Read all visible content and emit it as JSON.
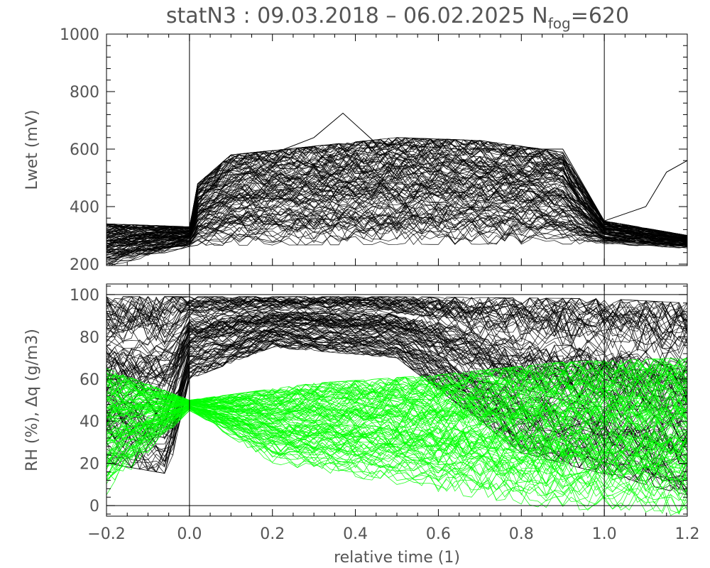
{
  "chart_data": [
    {
      "type": "line",
      "title": {
        "prefix": "statN3 : 09.03.2018 – 06.02.2025 N",
        "subscript": "fog",
        "suffix": "=620"
      },
      "ylabel": "Lwet (mV)",
      "xlabel": "",
      "xlim": [
        -0.2,
        1.2
      ],
      "ylim": [
        195,
        1000
      ],
      "y_ticks": [
        "200",
        "400",
        "600",
        "800",
        "1000"
      ],
      "y_tick_values": [
        200,
        400,
        600,
        800,
        1000
      ],
      "x_ticks_labeled": false,
      "reference_lines_x": [
        0.0,
        1.0
      ],
      "series": [
        {
          "color": "#000000",
          "style": "ensemble of fog-event curves",
          "envelope_upper": [
            [
              -0.2,
              340
            ],
            [
              0.0,
              330
            ],
            [
              0.02,
              480
            ],
            [
              0.1,
              580
            ],
            [
              0.3,
              610
            ],
            [
              0.5,
              640
            ],
            [
              0.7,
              630
            ],
            [
              0.9,
              590
            ],
            [
              1.0,
              350
            ],
            [
              1.2,
              300
            ]
          ],
          "envelope_lower": [
            [
              -0.2,
              190
            ],
            [
              0.0,
              260
            ],
            [
              0.02,
              265
            ],
            [
              0.5,
              268
            ],
            [
              1.0,
              270
            ],
            [
              1.2,
              255
            ]
          ]
        },
        {
          "color": "#000000",
          "style": "highlight curve",
          "points": [
            [
              -0.2,
              280
            ],
            [
              0.0,
              330
            ],
            [
              0.05,
              500
            ],
            [
              0.3,
              640
            ],
            [
              0.37,
              725
            ],
            [
              0.45,
              620
            ],
            [
              0.65,
              600
            ],
            [
              0.9,
              600
            ],
            [
              1.0,
              350
            ],
            [
              1.1,
              400
            ],
            [
              1.15,
              520
            ],
            [
              1.2,
              560
            ]
          ]
        }
      ]
    },
    {
      "type": "line",
      "ylabel": "RH (%), Δq (g/m3)",
      "xlabel": "relative time (1)",
      "xlim": [
        -0.2,
        1.2
      ],
      "ylim": [
        -5,
        105
      ],
      "y_ticks": [
        "0",
        "20",
        "40",
        "60",
        "80",
        "100"
      ],
      "y_tick_values": [
        0,
        20,
        40,
        60,
        80,
        100
      ],
      "x_ticks": [
        "−0.2",
        "0.0",
        "0.2",
        "0.4",
        "0.6",
        "0.8",
        "1.0",
        "1.2"
      ],
      "x_tick_values": [
        -0.2,
        0.0,
        0.2,
        0.4,
        0.6,
        0.8,
        1.0,
        1.2
      ],
      "reference_lines_x": [
        0.0,
        1.0
      ],
      "reference_lines_y": [
        0,
        100
      ],
      "series": [
        {
          "color": "#000000",
          "style": "relative humidity curves",
          "envelope_upper": [
            [
              -0.2,
              99
            ],
            [
              0.0,
              99
            ],
            [
              0.5,
              99
            ],
            [
              1.0,
              98
            ],
            [
              1.2,
              96
            ]
          ],
          "envelope_lower": [
            [
              -0.2,
              20
            ],
            [
              -0.05,
              15
            ],
            [
              0.0,
              60
            ],
            [
              0.2,
              75
            ],
            [
              0.5,
              70
            ],
            [
              0.8,
              25
            ],
            [
              1.0,
              15
            ],
            [
              1.2,
              5
            ]
          ]
        },
        {
          "color": "#00ff00",
          "style": "Δq curves",
          "envelope_upper": [
            [
              -0.2,
              65
            ],
            [
              0.0,
              50
            ],
            [
              0.3,
              58
            ],
            [
              0.6,
              62
            ],
            [
              0.9,
              68
            ],
            [
              1.2,
              70
            ]
          ],
          "envelope_lower": [
            [
              -0.2,
              5
            ],
            [
              0.0,
              45
            ],
            [
              0.2,
              20
            ],
            [
              0.5,
              10
            ],
            [
              0.8,
              0
            ],
            [
              1.0,
              -3
            ],
            [
              1.2,
              -5
            ]
          ]
        }
      ]
    }
  ]
}
